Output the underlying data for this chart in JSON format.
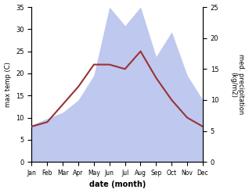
{
  "months": [
    "Jan",
    "Feb",
    "Mar",
    "Apr",
    "May",
    "Jun",
    "Jul",
    "Aug",
    "Sep",
    "Oct",
    "Nov",
    "Dec"
  ],
  "temp": [
    8,
    9,
    13,
    17,
    22,
    22,
    21,
    25,
    19,
    14,
    10,
    8
  ],
  "precip": [
    6,
    7,
    8,
    10,
    14,
    25,
    22,
    25,
    17,
    21,
    14,
    10
  ],
  "temp_color": "#993333",
  "precip_fill_color": "#bfc8ee",
  "xlabel": "date (month)",
  "ylabel_left": "max temp (C)",
  "ylabel_right": "med. precipitation\n(kg/m2)",
  "ylim_left": [
    0,
    35
  ],
  "ylim_right": [
    0,
    25
  ],
  "yticks_left": [
    0,
    5,
    10,
    15,
    20,
    25,
    30,
    35
  ],
  "yticks_right": [
    0,
    5,
    10,
    15,
    20,
    25
  ],
  "background_color": "#ffffff"
}
